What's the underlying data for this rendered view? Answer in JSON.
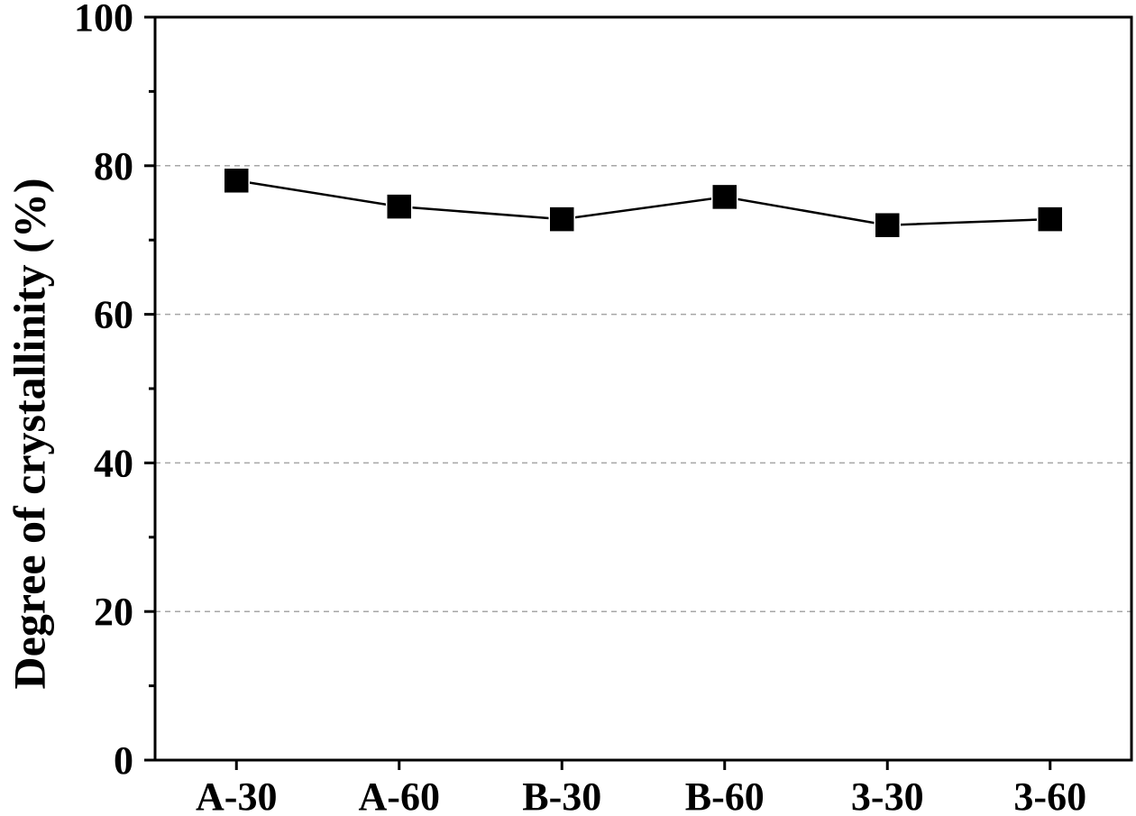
{
  "chart_data": {
    "type": "line",
    "title": "",
    "xlabel": "",
    "ylabel": "Degree of crystallinity (%)",
    "categories": [
      "A-30",
      "A-60",
      "B-30",
      "B-60",
      "3-30",
      "3-60"
    ],
    "series": [
      {
        "values": [
          78,
          74.5,
          72.8,
          75.8,
          72,
          72.8
        ],
        "color": "#000000",
        "marker": "square"
      }
    ],
    "ylim": [
      0,
      100
    ],
    "yticks": [
      0,
      20,
      40,
      60,
      80,
      100
    ],
    "yticklabels": [
      "0",
      "20",
      "40",
      "60",
      "80",
      "100"
    ],
    "grid": "dashed horizontal at 20, 40, 60, 80",
    "legend": "none",
    "gridColor": "#a6a6a6",
    "axisColor": "#000000"
  }
}
